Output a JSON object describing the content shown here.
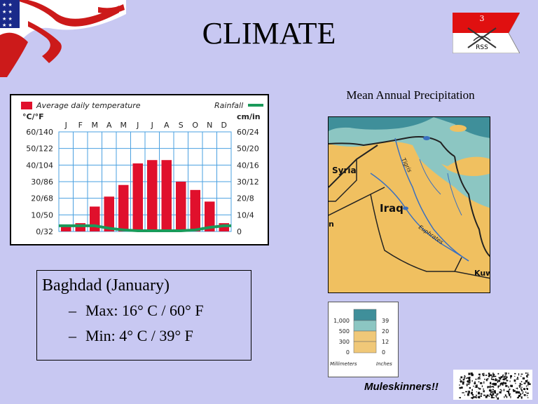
{
  "slide": {
    "title": "CLIMATE"
  },
  "unit_pennant": {
    "number": "3",
    "label": "RSS"
  },
  "climate_chart": {
    "chart_data": {
      "type": "bar",
      "legend": {
        "temperature": "Average daily temperature",
        "rainfall": "Rainfall"
      },
      "left_axis_unit": "°C/°F",
      "right_axis_unit": "cm/in",
      "categories": [
        "J",
        "F",
        "M",
        "A",
        "M",
        "J",
        "J",
        "A",
        "S",
        "O",
        "N",
        "D"
      ],
      "left_ticks": [
        "60/140",
        "50/122",
        "40/104",
        "30/86",
        "20/68",
        "10/50",
        "0/32"
      ],
      "right_ticks": [
        "60/24",
        "50/20",
        "40/16",
        "30/12",
        "20/8",
        "10/4",
        "0"
      ],
      "ylim": [
        0,
        60
      ],
      "series": [
        {
          "name": "Average daily temperature",
          "values": [
            3,
            5,
            15,
            21,
            28,
            41,
            43,
            43,
            30,
            25,
            18,
            5
          ]
        },
        {
          "name": "Rainfall",
          "values": [
            3,
            3,
            3,
            1.5,
            0.5,
            0,
            0,
            0,
            0,
            0.5,
            2,
            3
          ]
        }
      ],
      "colors": {
        "temperature": "#e0102c",
        "rainfall": "#1a9a5a",
        "grid": "#4aa0e0"
      }
    }
  },
  "precipitation": {
    "title": "Mean Annual Precipitation",
    "map_labels": {
      "syria": "Syria",
      "iraq": "Iraq",
      "tigris": "Tigris",
      "euphrates": "Euphrates",
      "edge_left": "n",
      "edge_right": "Kuw"
    },
    "legend": {
      "rows": [
        {
          "mm": "1,000",
          "in": "39",
          "color": "#3f8f9a"
        },
        {
          "mm": "500",
          "in": "20",
          "color": "#8cc6c2"
        },
        {
          "mm": "300",
          "in": "12",
          "color": "#f0c878"
        },
        {
          "mm": "0",
          "in": "0",
          "color": "#f0c878"
        }
      ],
      "unit_mm": "Millimeters",
      "unit_in": "Inches"
    }
  },
  "baghdad": {
    "title": "Baghdad (January)",
    "max": "Max: 16° C / 60° F",
    "min": "Min: 4° C / 39° F"
  },
  "footer": {
    "motto": "Muleskinners!!"
  }
}
